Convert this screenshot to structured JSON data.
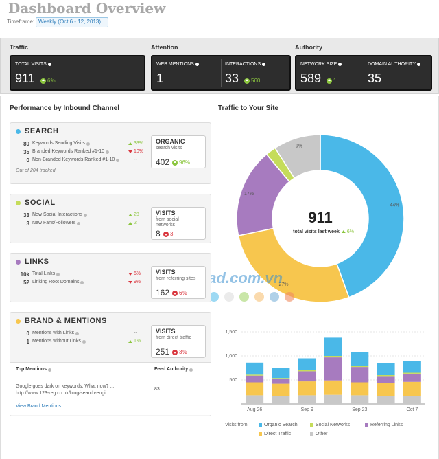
{
  "header": {
    "title": "Dashboard Overview",
    "timeframe_label": "Timeframe:",
    "timeframe": "Weekly (Oct 6 - 12, 2013)"
  },
  "kpis": [
    {
      "title": "Traffic",
      "items": [
        {
          "label": "TOTAL VISITS",
          "value": 911,
          "change": "6%"
        }
      ]
    },
    {
      "title": "Attention",
      "items": [
        {
          "label": "WEB MENTIONS",
          "value": 1
        },
        {
          "label": "INTERACTIONS",
          "value": 33,
          "change": "560"
        }
      ]
    },
    {
      "title": "Authority",
      "items": [
        {
          "label": "NETWORK SIZE",
          "value": 589,
          "change": "1"
        },
        {
          "label": "DOMAIN AUTHORITY",
          "value": 35
        }
      ]
    }
  ],
  "performance": {
    "title": "Performance by Inbound Channel",
    "channels": [
      {
        "name": "SEARCH",
        "color": "#4ab8e8",
        "metrics": [
          {
            "value": 80,
            "label": "Keywords Sending Visits",
            "change": "33%",
            "trend": "up"
          },
          {
            "value": 35,
            "label": "Branded Keywords Ranked #1-10",
            "change": "10%",
            "trend": "down"
          },
          {
            "value": 0,
            "label": "Non-Branded Keywords Ranked #1-10",
            "change": "--"
          }
        ],
        "note": "Out of 204 tracked",
        "box": {
          "title": "ORGANIC",
          "subtitle": "search visits",
          "value": 402,
          "change": "96%",
          "trend": "up"
        }
      },
      {
        "name": "SOCIAL",
        "color": "#c5dc5a",
        "metrics": [
          {
            "value": 33,
            "label": "New Social Interactions",
            "change": "28",
            "trend": "up"
          },
          {
            "value": 3,
            "label": "New Fans/Followers",
            "change": "2",
            "trend": "up"
          }
        ],
        "box": {
          "title": "VISITS",
          "subtitle": "from social networks",
          "value": 8,
          "change": "3",
          "trend": "down"
        }
      },
      {
        "name": "LINKS",
        "color": "#a77bbf",
        "metrics": [
          {
            "value": "10k",
            "label": "Total Links",
            "change": "6%",
            "trend": "down"
          },
          {
            "value": 52,
            "label": "Linking Root Domains",
            "change": "9%",
            "trend": "down"
          }
        ],
        "box": {
          "title": "VISITS",
          "subtitle": "from referring sites",
          "value": 162,
          "change": "6%",
          "trend": "down"
        }
      },
      {
        "name": "BRAND & MENTIONS",
        "color": "#f7c64e",
        "metrics": [
          {
            "value": 0,
            "label": "Mentions with Links",
            "change": "--"
          },
          {
            "value": 1,
            "label": "Mentions without Links",
            "change": "1%",
            "trend": "up"
          }
        ],
        "box": {
          "title": "VISITS",
          "subtitle": "from direct traffic",
          "value": 251,
          "change": "3%",
          "trend": "down"
        }
      }
    ],
    "mentions": {
      "headers": [
        "Top Mentions",
        "Feed Authority"
      ],
      "rows": [
        [
          "Google goes dark on keywords. What now? ... http://www.123-reg.co.uk/blog/search-engi...",
          83
        ]
      ],
      "link": "View Brand Mentions"
    }
  },
  "watermark": "Download.com.vn",
  "chart_data": [
    {
      "type": "donut",
      "title": "Traffic to Your Site",
      "values": [
        44,
        27,
        17,
        2,
        9
      ],
      "value_labels": [
        "44%",
        "27%",
        "17%",
        null,
        "9%"
      ],
      "colors": [
        "#4ab8e8",
        "#f7c64e",
        "#a77bbf",
        "#c5dc5a",
        "#c8c8c8"
      ],
      "center_value": 911,
      "center_label": "total visits last week",
      "center_change": "6%"
    },
    {
      "type": "stacked_bar",
      "categories": [
        "Aug 26",
        null,
        "Sep 9",
        null,
        "Sep 23",
        null,
        "Oct 7"
      ],
      "series": [
        {
          "name": "Organic Search",
          "color": "#4ab8e8",
          "values": [
            250,
            210,
            250,
            380,
            280,
            250,
            250
          ]
        },
        {
          "name": "Social Networks",
          "color": "#c5dc5a",
          "values": [
            20,
            20,
            20,
            30,
            30,
            20,
            20
          ]
        },
        {
          "name": "Referring Links",
          "color": "#a77bbf",
          "values": [
            140,
            100,
            210,
            480,
            320,
            140,
            170
          ]
        },
        {
          "name": "Direct Traffic",
          "color": "#f7c64e",
          "values": [
            270,
            250,
            290,
            300,
            270,
            270,
            290
          ]
        },
        {
          "name": "Other",
          "color": "#c8c8c8",
          "values": [
            180,
            170,
            180,
            190,
            180,
            170,
            170
          ]
        }
      ],
      "ylim": [
        0,
        1500
      ],
      "yticks": [
        500,
        {
          "value": 1000,
          "label": "1,000"
        },
        {
          "value": 1500,
          "label": "1,500"
        }
      ],
      "grid": true,
      "legend_title": "Visits from:"
    }
  ]
}
